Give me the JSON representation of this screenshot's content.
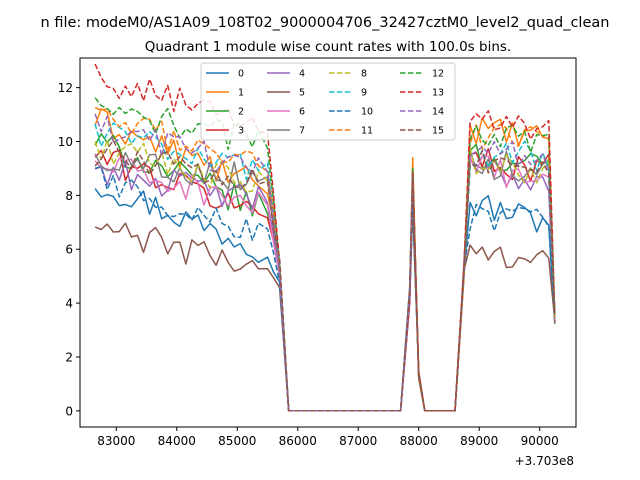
{
  "chart_data": {
    "type": "line",
    "suptitle": "n file: modeM0/AS1A09_108T02_9000004706_32427cztM0_level2_quad_clean",
    "title": "Quadrant 1 module wise count rates with 100.0s bins.",
    "xlabel": "",
    "ylabel": "",
    "x_offset_label": "+3.703e8",
    "xlim": [
      82400,
      90600
    ],
    "ylim": [
      -0.6,
      13.1
    ],
    "xticks": [
      83000,
      84000,
      85000,
      86000,
      87000,
      88000,
      89000,
      90000
    ],
    "xtick_labels": [
      "83000",
      "84000",
      "85000",
      "86000",
      "87000",
      "88000",
      "89000",
      "90000"
    ],
    "yticks": [
      0,
      2,
      4,
      6,
      8,
      10,
      12
    ],
    "ytick_labels": [
      "0",
      "2",
      "4",
      "6",
      "8",
      "10",
      "12"
    ],
    "legend_location": "upper center",
    "segments": [
      {
        "start": 82650,
        "end": 85750,
        "drop": [
          85850,
          0
        ]
      },
      {
        "start": 87850,
        "end": 88100,
        "drop": [
          88200,
          0
        ]
      },
      {
        "start": 88750,
        "end": 90250,
        "drop": null
      }
    ],
    "series": [
      {
        "name": "0",
        "color": "#1f77b4",
        "dash": "solid",
        "levels": [
          8.5,
          6.0,
          9.0,
          7.7,
          7.0
        ],
        "peak": 7.6
      },
      {
        "name": "1",
        "color": "#ff7f0e",
        "dash": "solid",
        "levels": [
          10.8,
          8.3,
          9.4,
          10.5,
          10.0
        ],
        "peak": 9.4
      },
      {
        "name": "2",
        "color": "#2ca02c",
        "dash": "solid",
        "levels": [
          10.0,
          7.5,
          9.2,
          9.5,
          9.0
        ],
        "peak": 9.0
      },
      {
        "name": "3",
        "color": "#d62728",
        "dash": "solid",
        "levels": [
          9.5,
          7.3,
          8.8,
          9.3,
          9.0
        ],
        "peak": 8.9
      },
      {
        "name": "4",
        "color": "#9467bd",
        "dash": "solid",
        "levels": [
          9.0,
          7.8,
          8.6,
          9.0,
          8.5
        ],
        "peak": 8.6
      },
      {
        "name": "5",
        "color": "#8c564b",
        "dash": "solid",
        "levels": [
          6.8,
          5.3,
          7.5,
          5.8,
          5.8
        ],
        "peak": 7.5
      },
      {
        "name": "6",
        "color": "#e377c2",
        "dash": "solid",
        "levels": [
          9.2,
          7.6,
          8.8,
          9.0,
          8.6
        ],
        "peak": 8.8
      },
      {
        "name": "7",
        "color": "#7f7f7f",
        "dash": "solid",
        "levels": [
          9.4,
          8.6,
          8.8,
          9.2,
          9.0
        ],
        "peak": 8.8
      },
      {
        "name": "8",
        "color": "#bcbd22",
        "dash": "dashed",
        "levels": [
          9.8,
          8.4,
          8.6,
          9.2,
          8.8
        ],
        "peak": 8.6
      },
      {
        "name": "9",
        "color": "#17becf",
        "dash": "dashed",
        "levels": [
          10.4,
          9.0,
          8.8,
          9.6,
          9.4
        ],
        "peak": 8.8
      },
      {
        "name": "10",
        "color": "#1f77b4",
        "dash": "dashed",
        "levels": [
          8.7,
          6.5,
          8.0,
          7.2,
          7.0
        ],
        "peak": 8.0
      },
      {
        "name": "11",
        "color": "#ff7f0e",
        "dash": "dashed",
        "levels": [
          10.9,
          9.2,
          8.9,
          10.3,
          10.0
        ],
        "peak": 8.9
      },
      {
        "name": "12",
        "color": "#2ca02c",
        "dash": "dashed",
        "levels": [
          11.2,
          10.0,
          8.9,
          10.4,
          10.0
        ],
        "peak": 8.9
      },
      {
        "name": "13",
        "color": "#d62728",
        "dash": "dashed",
        "levels": [
          12.4,
          10.5,
          8.9,
          11.0,
          10.3
        ],
        "peak": 8.9
      },
      {
        "name": "14",
        "color": "#9467bd",
        "dash": "dashed",
        "levels": [
          10.5,
          9.0,
          8.7,
          9.7,
          9.3
        ],
        "peak": 8.7
      },
      {
        "name": "15",
        "color": "#8c564b",
        "dash": "dashed",
        "levels": [
          9.6,
          8.6,
          8.8,
          9.3,
          9.0
        ],
        "peak": 8.8
      }
    ]
  }
}
